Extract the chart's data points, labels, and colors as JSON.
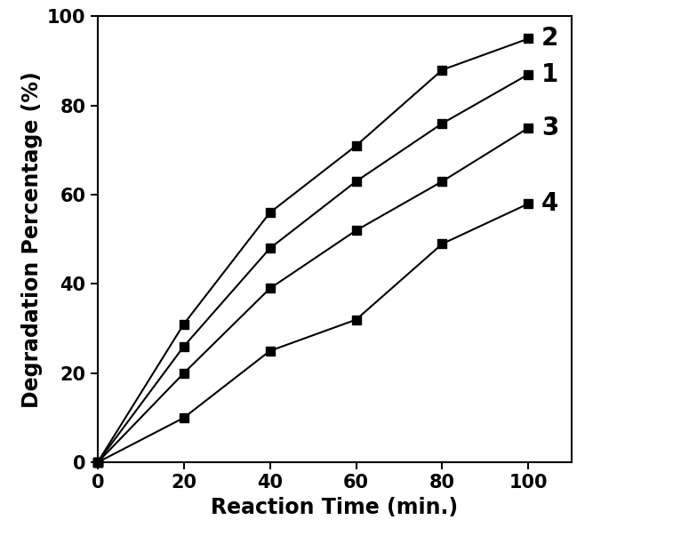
{
  "series": [
    {
      "label": "2",
      "x": [
        0,
        20,
        40,
        60,
        80,
        100
      ],
      "y": [
        0,
        31,
        56,
        71,
        88,
        95
      ]
    },
    {
      "label": "1",
      "x": [
        0,
        20,
        40,
        60,
        80,
        100
      ],
      "y": [
        0,
        26,
        48,
        63,
        76,
        87
      ]
    },
    {
      "label": "3",
      "x": [
        0,
        20,
        40,
        60,
        80,
        100
      ],
      "y": [
        0,
        20,
        39,
        52,
        63,
        75
      ]
    },
    {
      "label": "4",
      "x": [
        0,
        20,
        40,
        60,
        80,
        100
      ],
      "y": [
        0,
        10,
        25,
        32,
        49,
        58
      ]
    }
  ],
  "xlabel": "Reaction Time (min.)",
  "ylabel": "Degradation Percentage (%)",
  "xlim": [
    0,
    110
  ],
  "ylim": [
    0,
    100
  ],
  "xticks": [
    0,
    20,
    40,
    60,
    80,
    100
  ],
  "yticks": [
    0,
    20,
    40,
    60,
    80,
    100
  ],
  "line_color": "#000000",
  "marker": "s",
  "marker_size": 7,
  "line_width": 1.5,
  "label_fontsize": 17,
  "tick_fontsize": 15,
  "annotation_fontsize": 20,
  "background_color": "#ffffff"
}
